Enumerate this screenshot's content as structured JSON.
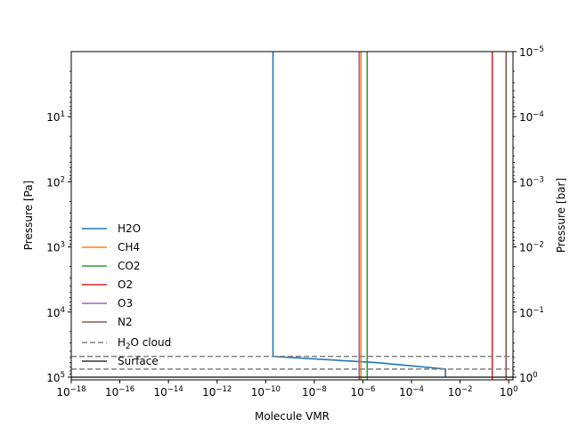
{
  "chart_data": {
    "type": "line",
    "xlabel": "Molecule VMR",
    "ylabel": "Pressure [Pa]",
    "ylabel_right": "Pressure [bar]",
    "x_scale": "log",
    "y_scale": "log",
    "y_inverted": true,
    "xlim": [
      1e-18,
      1.5
    ],
    "ylim": [
      110000,
      1
    ],
    "ylim_right": [
      1.1,
      1e-05
    ],
    "x_ticks": [
      {
        "value": 1e-18,
        "base": "10",
        "exp": "−18"
      },
      {
        "value": 1e-16,
        "base": "10",
        "exp": "−16"
      },
      {
        "value": 1e-14,
        "base": "10",
        "exp": "−14"
      },
      {
        "value": 1e-12,
        "base": "10",
        "exp": "−12"
      },
      {
        "value": 1e-10,
        "base": "10",
        "exp": "−10"
      },
      {
        "value": 1e-08,
        "base": "10",
        "exp": "−8"
      },
      {
        "value": 1e-06,
        "base": "10",
        "exp": "−6"
      },
      {
        "value": 0.0001,
        "base": "10",
        "exp": "−4"
      },
      {
        "value": 0.01,
        "base": "10",
        "exp": "−2"
      },
      {
        "value": 1,
        "base": "10",
        "exp": "0"
      }
    ],
    "y_ticks_left": [
      {
        "value": 10,
        "base": "10",
        "exp": "1"
      },
      {
        "value": 100,
        "base": "10",
        "exp": "2"
      },
      {
        "value": 1000,
        "base": "10",
        "exp": "3"
      },
      {
        "value": 10000,
        "base": "10",
        "exp": "4"
      },
      {
        "value": 100000,
        "base": "10",
        "exp": "5"
      }
    ],
    "y_ticks_right": [
      {
        "value": 1e-05,
        "base": "10",
        "exp": "−5"
      },
      {
        "value": 0.0001,
        "base": "10",
        "exp": "−4"
      },
      {
        "value": 0.001,
        "base": "10",
        "exp": "−3"
      },
      {
        "value": 0.01,
        "base": "10",
        "exp": "−2"
      },
      {
        "value": 0.1,
        "base": "10",
        "exp": "−1"
      },
      {
        "value": 1,
        "base": "10",
        "exp": "0"
      }
    ],
    "series": [
      {
        "name": "H2O",
        "color": "#1f77b4",
        "points": [
          [
            2e-10,
            1
          ],
          [
            2e-10,
            48000
          ],
          [
            4e-06,
            60000
          ],
          [
            0.0025,
            75000
          ],
          [
            0.0025,
            100000
          ]
        ]
      },
      {
        "name": "CH4",
        "color": "#ff7f0e",
        "points": [
          [
            8.3e-07,
            1
          ],
          [
            8.3e-07,
            110000
          ]
        ]
      },
      {
        "name": "CO2",
        "color": "#2ca02c",
        "points": [
          [
            1.5e-06,
            1
          ],
          [
            1.5e-06,
            110000
          ]
        ]
      },
      {
        "name": "O2",
        "color": "#d62728",
        "points": [
          [
            0.21,
            1
          ],
          [
            0.21,
            110000
          ]
        ]
      },
      {
        "name": "O3",
        "color": "#9467bd",
        "points": [
          [
            7e-07,
            1
          ],
          [
            7e-07,
            110000
          ]
        ]
      },
      {
        "name": "N2",
        "color": "#8c564b",
        "points": [
          [
            0.78,
            1
          ],
          [
            0.78,
            110000
          ]
        ]
      }
    ],
    "reference_lines": [
      {
        "name": "cloud",
        "label_base": "H",
        "label_sub": "2",
        "label_rest": "O cloud",
        "color": "#808080",
        "style": "dashed",
        "y_values": [
          48000,
          75000
        ]
      },
      {
        "name": "Surface",
        "label": "Surface",
        "color": "#333333",
        "style": "solid",
        "y_values": [
          100000
        ]
      }
    ],
    "legend_placement": "lower-left",
    "grid": false
  }
}
